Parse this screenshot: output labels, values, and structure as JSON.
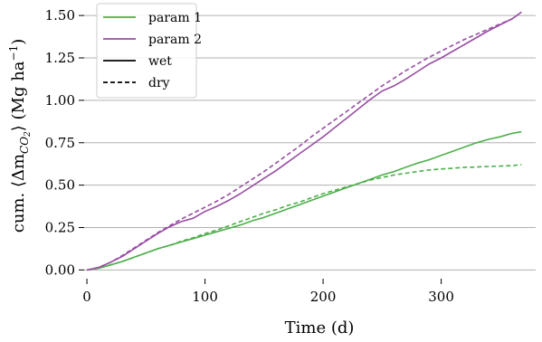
{
  "chart_data": {
    "type": "line",
    "xlabel": "Time (d)",
    "ylabel": "cum. ⟨Δm",
    "ylabel_sub": "CO",
    "ylabel_sub2": "2",
    "ylabel_rest": "⟩ (Mg ha",
    "ylabel_sup": "−1",
    "ylabel_end": ")",
    "xlim": [
      -10,
      380
    ],
    "ylim": [
      -0.03,
      1.57
    ],
    "xticks": [
      0,
      100,
      200,
      300
    ],
    "xtick_labels": [
      "0",
      "100",
      "200",
      "300"
    ],
    "yticks": [
      0.0,
      0.25,
      0.5,
      0.75,
      1.0,
      1.25,
      1.5
    ],
    "ytick_labels": [
      "0.00",
      "0.25",
      "0.50",
      "0.75",
      "1.00",
      "1.25",
      "1.50"
    ],
    "grid": "horizontal",
    "legend_position": "top-left",
    "colors": {
      "param1": "#4daf4a",
      "param2": "#984ea3",
      "style": "#000000"
    },
    "legend": [
      {
        "label": "param 1",
        "color": "#4daf4a",
        "dash": "solid"
      },
      {
        "label": "param 2",
        "color": "#984ea3",
        "dash": "solid"
      },
      {
        "label": "wet",
        "color": "#000000",
        "dash": "solid"
      },
      {
        "label": "dry",
        "color": "#000000",
        "dash": "dashed"
      }
    ],
    "series": [
      {
        "group": "param 1",
        "condition": "wet",
        "color": "#4daf4a",
        "dash": "solid",
        "x": [
          0,
          10,
          20,
          30,
          40,
          50,
          60,
          70,
          80,
          90,
          100,
          110,
          120,
          130,
          140,
          150,
          160,
          170,
          180,
          190,
          200,
          210,
          220,
          230,
          240,
          250,
          260,
          270,
          280,
          290,
          300,
          310,
          320,
          330,
          340,
          350,
          360,
          368
        ],
        "y": [
          0.0,
          0.01,
          0.03,
          0.05,
          0.075,
          0.1,
          0.125,
          0.145,
          0.165,
          0.185,
          0.205,
          0.225,
          0.245,
          0.265,
          0.29,
          0.31,
          0.335,
          0.36,
          0.385,
          0.41,
          0.435,
          0.46,
          0.485,
          0.51,
          0.535,
          0.56,
          0.58,
          0.605,
          0.63,
          0.65,
          0.675,
          0.7,
          0.725,
          0.75,
          0.77,
          0.785,
          0.805,
          0.815
        ]
      },
      {
        "group": "param 1",
        "condition": "dry",
        "color": "#4daf4a",
        "dash": "dashed",
        "x": [
          0,
          10,
          20,
          30,
          40,
          50,
          60,
          70,
          80,
          90,
          100,
          110,
          120,
          130,
          140,
          150,
          160,
          170,
          180,
          190,
          200,
          210,
          220,
          230,
          240,
          250,
          260,
          270,
          280,
          290,
          300,
          310,
          320,
          330,
          340,
          350,
          360,
          368
        ],
        "y": [
          0.0,
          0.01,
          0.03,
          0.05,
          0.075,
          0.1,
          0.125,
          0.145,
          0.17,
          0.19,
          0.215,
          0.235,
          0.26,
          0.285,
          0.31,
          0.335,
          0.355,
          0.38,
          0.4,
          0.425,
          0.45,
          0.47,
          0.49,
          0.51,
          0.53,
          0.545,
          0.56,
          0.57,
          0.58,
          0.59,
          0.595,
          0.6,
          0.605,
          0.607,
          0.61,
          0.612,
          0.615,
          0.62
        ]
      },
      {
        "group": "param 2",
        "condition": "wet",
        "color": "#984ea3",
        "dash": "solid",
        "x": [
          0,
          10,
          20,
          30,
          40,
          50,
          60,
          70,
          80,
          90,
          100,
          110,
          120,
          130,
          140,
          150,
          160,
          170,
          180,
          190,
          200,
          210,
          220,
          230,
          240,
          250,
          260,
          270,
          280,
          290,
          300,
          310,
          320,
          330,
          340,
          350,
          360,
          368
        ],
        "y": [
          0.0,
          0.015,
          0.045,
          0.08,
          0.125,
          0.17,
          0.215,
          0.255,
          0.285,
          0.305,
          0.345,
          0.375,
          0.41,
          0.45,
          0.495,
          0.54,
          0.585,
          0.635,
          0.685,
          0.735,
          0.785,
          0.84,
          0.895,
          0.95,
          1.005,
          1.055,
          1.085,
          1.125,
          1.17,
          1.215,
          1.25,
          1.29,
          1.33,
          1.37,
          1.41,
          1.445,
          1.48,
          1.52
        ]
      },
      {
        "group": "param 2",
        "condition": "dry",
        "color": "#984ea3",
        "dash": "dashed",
        "x": [
          0,
          10,
          20,
          30,
          40,
          50,
          60,
          70,
          80,
          90,
          100,
          110,
          120,
          130,
          140,
          150,
          160,
          170,
          180,
          190,
          200,
          210,
          220,
          230,
          240,
          250,
          260,
          270,
          280,
          290,
          300,
          310,
          320,
          330,
          340,
          350,
          360,
          368
        ],
        "y": [
          0.0,
          0.015,
          0.045,
          0.085,
          0.13,
          0.175,
          0.22,
          0.26,
          0.3,
          0.335,
          0.37,
          0.405,
          0.445,
          0.49,
          0.535,
          0.58,
          0.63,
          0.68,
          0.73,
          0.785,
          0.835,
          0.885,
          0.935,
          0.985,
          1.035,
          1.085,
          1.13,
          1.175,
          1.215,
          1.255,
          1.29,
          1.325,
          1.36,
          1.39,
          1.42,
          1.45,
          1.48,
          1.52
        ]
      }
    ]
  }
}
